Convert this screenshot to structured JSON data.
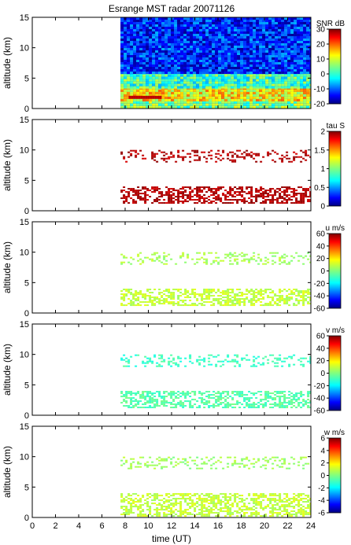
{
  "chart_data": {
    "title": "Esrange MST radar 20071126",
    "type": "heatmap",
    "xlabel": "time (UT)",
    "xlim": [
      0,
      24
    ],
    "xticks": [
      0,
      2,
      4,
      6,
      8,
      10,
      12,
      14,
      16,
      18,
      20,
      22,
      24
    ],
    "data_start_time": 7.6,
    "panels": [
      {
        "ylabel": "altitude (km)",
        "ylim": [
          0,
          15
        ],
        "yticks": [
          0,
          5,
          10,
          15
        ],
        "colorbar_label": "SNR dB",
        "clim": [
          -20,
          30
        ],
        "cticks": [
          -20,
          -10,
          0,
          10,
          20,
          30
        ],
        "layers": [
          {
            "alt": [
              0,
              1.2
            ],
            "value": 5
          },
          {
            "alt": [
              1.2,
              3.5
            ],
            "value": 12
          },
          {
            "alt": [
              3.5,
              6
            ],
            "value": 2
          },
          {
            "alt": [
              6,
              15
            ],
            "value": -12
          }
        ]
      },
      {
        "ylabel": "altitude (km)",
        "ylim": [
          0,
          15
        ],
        "yticks": [
          0,
          5,
          10,
          15
        ],
        "colorbar_label": "tau S",
        "clim": [
          0,
          2
        ],
        "cticks": [
          0,
          0.5,
          1,
          1.5,
          2
        ],
        "layers": [
          {
            "alt": [
              1.2,
              4
            ],
            "value": 1.9
          },
          {
            "alt": [
              8,
              10
            ],
            "value": 1.9
          }
        ]
      },
      {
        "ylabel": "altitude (km)",
        "ylim": [
          0,
          15
        ],
        "yticks": [
          0,
          5,
          10,
          15
        ],
        "colorbar_label": "u m/s",
        "clim": [
          -60,
          60
        ],
        "cticks": [
          -60,
          -40,
          -20,
          0,
          20,
          40,
          60
        ],
        "layers": [
          {
            "alt": [
              1.2,
              4
            ],
            "value": 8
          },
          {
            "alt": [
              8,
              10
            ],
            "value": 5
          }
        ]
      },
      {
        "ylabel": "altitude (km)",
        "ylim": [
          0,
          15
        ],
        "yticks": [
          0,
          5,
          10,
          15
        ],
        "colorbar_label": "v m/s",
        "clim": [
          -60,
          60
        ],
        "cticks": [
          -60,
          -40,
          -20,
          0,
          20,
          40,
          60
        ],
        "layers": [
          {
            "alt": [
              1.2,
              4
            ],
            "value": -5
          },
          {
            "alt": [
              8,
              10
            ],
            "value": -8
          }
        ]
      },
      {
        "ylabel": "altitude (km)",
        "ylim": [
          0,
          15
        ],
        "yticks": [
          0,
          5,
          10,
          15
        ],
        "colorbar_label": "w m/s",
        "clim": [
          -6,
          6
        ],
        "cticks": [
          -6,
          -4,
          -2,
          0,
          2,
          4,
          6
        ],
        "layers": [
          {
            "alt": [
              0.3,
              4
            ],
            "value": 0.8
          },
          {
            "alt": [
              8,
              10
            ],
            "value": 0.4
          }
        ]
      }
    ]
  }
}
